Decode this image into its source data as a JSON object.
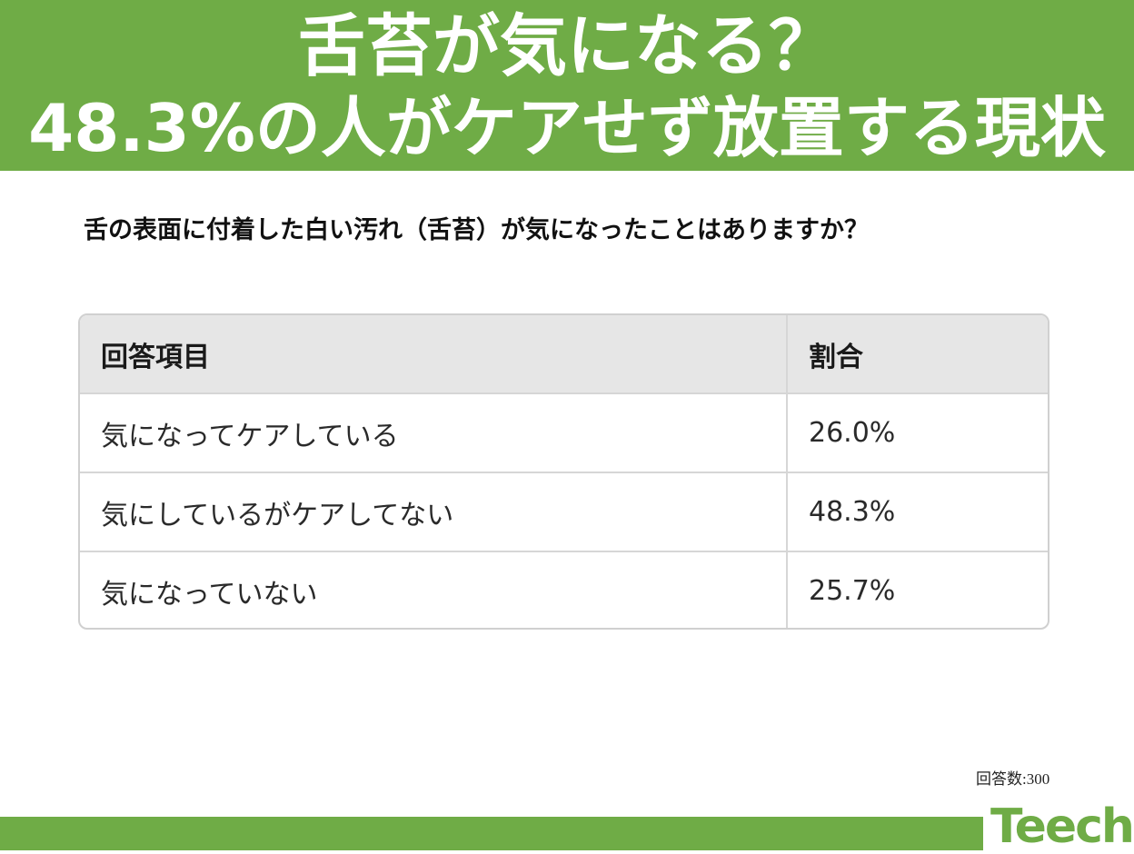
{
  "banner": {
    "line1": "舌苔が気になる？",
    "line2": "48.3%の人がケアせず放置する現状"
  },
  "question": "舌の表面に付着した白い汚れ（舌苔）が気になったことはありますか？",
  "table": {
    "headers": [
      "回答項目",
      "割合"
    ],
    "rows": [
      {
        "item": "気になってケアしている",
        "ratio": "26.0%"
      },
      {
        "item": "気にしているがケアしてない",
        "ratio": "48.3%"
      },
      {
        "item": "気になっていない",
        "ratio": "25.7%"
      }
    ]
  },
  "respondents": "回答数:300",
  "logo": "Teech",
  "colors": {
    "brand_green": "#6fac46",
    "header_gray": "#e6e6e6"
  }
}
